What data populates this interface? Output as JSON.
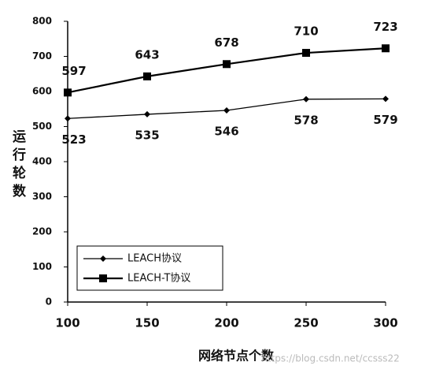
{
  "chart_data": {
    "type": "line",
    "x_label": "网络节点个数",
    "y_label": "运行轮数",
    "x": [
      100,
      150,
      200,
      250,
      300
    ],
    "xlim": [
      100,
      300
    ],
    "xticks": [
      100,
      150,
      200,
      250,
      300
    ],
    "ylim": [
      0,
      800
    ],
    "yticks": [
      0,
      100,
      200,
      300,
      400,
      500,
      600,
      700,
      800
    ],
    "grid": false,
    "legend": "lower left",
    "series": [
      {
        "name": "LEACH协议",
        "color": "#000000",
        "marker": "diamond",
        "label_position": "below",
        "values": [
          523,
          535,
          546,
          578,
          579
        ]
      },
      {
        "name": "LEACH-T协议",
        "color": "#000000",
        "marker": "square",
        "label_position": "above",
        "values": [
          597,
          643,
          678,
          710,
          723
        ]
      }
    ],
    "watermark": "https://blog.csdn.net/ccsss22"
  }
}
